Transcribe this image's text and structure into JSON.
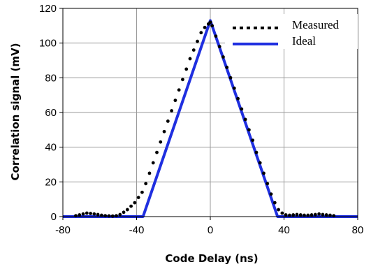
{
  "chart_data": {
    "type": "line",
    "xlabel": "Code Delay (ns)",
    "ylabel": "Correlation signal (mV)",
    "xlim": [
      -80,
      80
    ],
    "ylim": [
      0,
      120
    ],
    "x_ticks": [
      "-80",
      "-40",
      "0",
      "40",
      "80"
    ],
    "y_ticks": [
      "0",
      "20",
      "40",
      "60",
      "80",
      "100",
      "120"
    ],
    "grid": true,
    "legend_position": "top-right",
    "series": [
      {
        "name": "Measured",
        "style": "dotted",
        "color": "#000000",
        "x": [
          -73,
          -71,
          -69,
          -67,
          -65,
          -63,
          -61,
          -59,
          -57,
          -55,
          -53,
          -51,
          -49,
          -47,
          -45,
          -43,
          -41,
          -39,
          -37,
          -35,
          -33,
          -31,
          -29,
          -27,
          -25,
          -23,
          -21,
          -19,
          -17,
          -15,
          -13,
          -11,
          -9,
          -7,
          -5,
          -3,
          -1,
          0,
          1,
          3,
          5,
          7,
          9,
          11,
          13,
          15,
          17,
          19,
          21,
          23,
          25,
          27,
          29,
          31,
          33,
          35,
          37,
          39,
          41,
          43,
          45,
          47,
          49,
          51,
          53,
          55,
          57,
          59,
          61,
          63,
          65,
          67
        ],
        "y": [
          0.5,
          1,
          1.5,
          2,
          1.8,
          1.5,
          1.2,
          0.8,
          0.5,
          0.4,
          0.3,
          0.5,
          1.2,
          2.5,
          4,
          6,
          8,
          11,
          14,
          19,
          25,
          31,
          37,
          43,
          49,
          55,
          61,
          67,
          73,
          79,
          85,
          91,
          96,
          101,
          106,
          109,
          111,
          112,
          110,
          104,
          98,
          92,
          86,
          80,
          74,
          68,
          62,
          56,
          50,
          44,
          37,
          31,
          25,
          19,
          13,
          8,
          4,
          2,
          1,
          0.8,
          1,
          1.2,
          1,
          0.8,
          0.8,
          1,
          1.2,
          1.5,
          1.2,
          1,
          0.8,
          0.5
        ]
      },
      {
        "name": "Ideal",
        "style": "solid",
        "color": "#1f2fe0",
        "x": [
          -80,
          -36.5,
          0,
          36.5,
          80
        ],
        "y": [
          0,
          0,
          113,
          0,
          0
        ]
      }
    ]
  }
}
